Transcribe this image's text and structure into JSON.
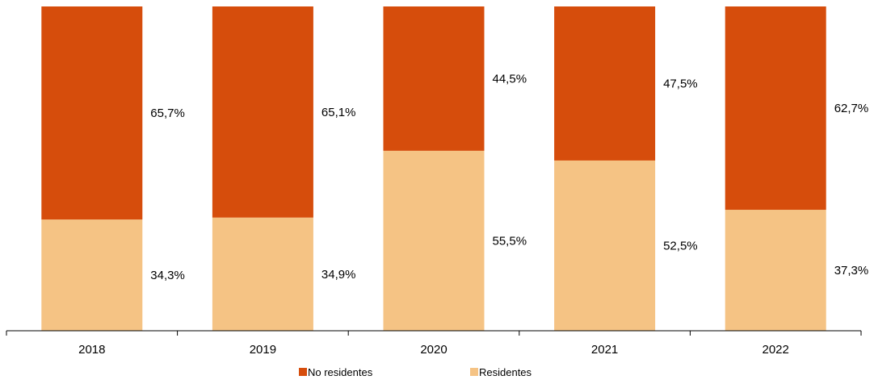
{
  "chart_data": {
    "type": "bar",
    "stacked": true,
    "percent_stacked": true,
    "categories": [
      "2018",
      "2019",
      "2020",
      "2021",
      "2022"
    ],
    "series": [
      {
        "name": "Residentes",
        "values": [
          34.3,
          34.9,
          55.5,
          52.5,
          37.3
        ],
        "labels": [
          "34,3%",
          "34,9%",
          "55,5%",
          "52,5%",
          "37,3%"
        ],
        "color": "#F5C384"
      },
      {
        "name": "No residentes",
        "values": [
          65.7,
          65.1,
          44.5,
          47.5,
          62.7
        ],
        "labels": [
          "65,7%",
          "65,1%",
          "44,5%",
          "47,5%",
          "62,7%"
        ],
        "color": "#D64D0C"
      }
    ],
    "legend_order": [
      "No residentes",
      "Residentes"
    ],
    "legend_position": "bottom",
    "ylim": [
      0,
      100
    ],
    "grid": false,
    "title": "",
    "xlabel": "",
    "ylabel": ""
  }
}
